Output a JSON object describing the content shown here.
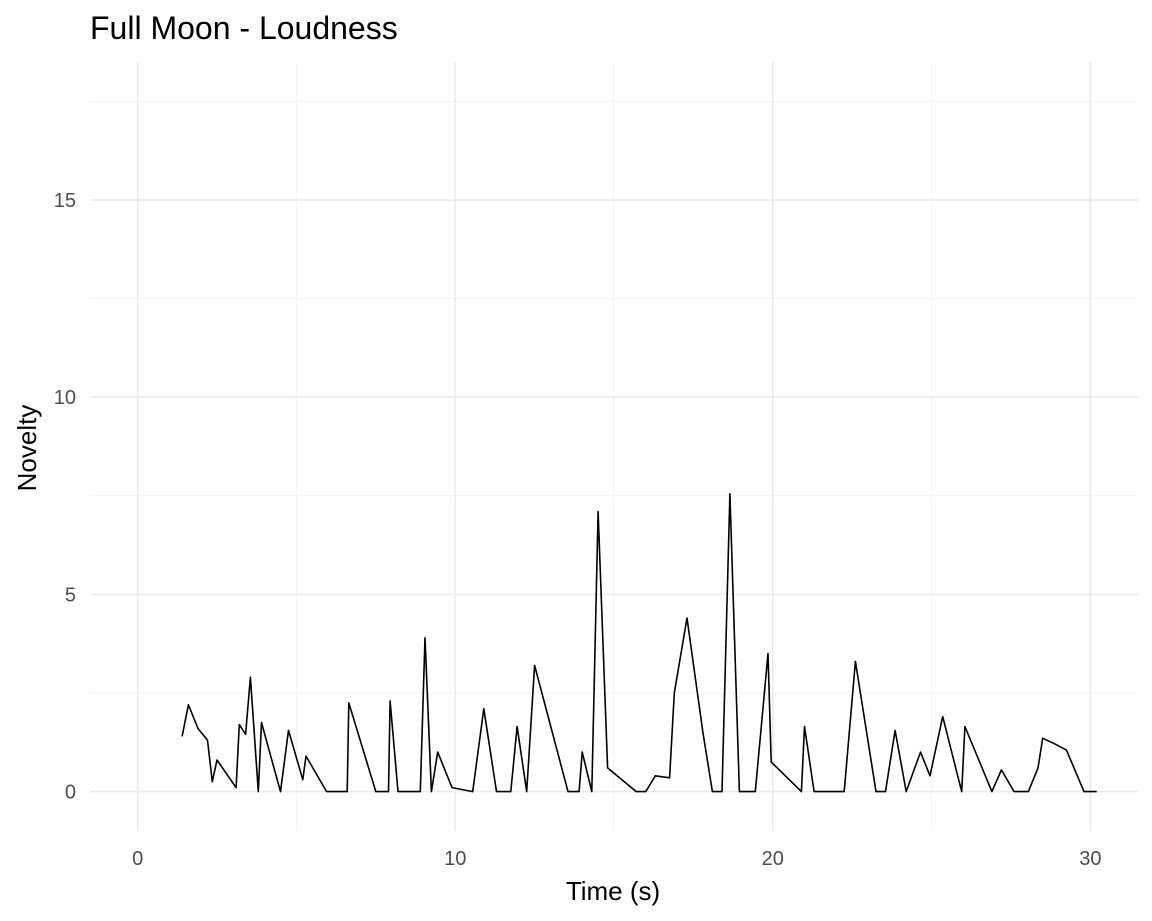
{
  "chart_data": {
    "type": "line",
    "title": "Full Moon - Loudness",
    "xlabel": "Time (s)",
    "ylabel": "Novelty",
    "xlim": [
      -1.5,
      31.5
    ],
    "ylim": [
      -1,
      18.5
    ],
    "x_ticks": [
      0,
      10,
      20,
      30
    ],
    "y_ticks": [
      0,
      5,
      10,
      15
    ],
    "x_tick_labels": [
      "0",
      "10",
      "20",
      "30"
    ],
    "y_tick_labels": [
      "0",
      "5",
      "10",
      "15"
    ],
    "grid": true,
    "series": [
      {
        "points": [
          [
            1.4,
            1.4
          ],
          [
            1.6,
            2.2
          ],
          [
            1.9,
            1.6
          ],
          [
            2.2,
            1.3
          ],
          [
            2.35,
            0.25
          ],
          [
            2.5,
            0.8
          ],
          [
            3.1,
            0.1
          ],
          [
            3.2,
            1.7
          ],
          [
            3.4,
            1.45
          ],
          [
            3.55,
            2.9
          ],
          [
            3.8,
            0.0
          ],
          [
            3.9,
            1.75
          ],
          [
            4.5,
            0.0
          ],
          [
            4.75,
            1.55
          ],
          [
            5.2,
            0.3
          ],
          [
            5.3,
            0.9
          ],
          [
            5.95,
            0.0
          ],
          [
            6.6,
            0.0
          ],
          [
            6.65,
            2.25
          ],
          [
            7.5,
            0.0
          ],
          [
            7.9,
            0.0
          ],
          [
            7.95,
            2.3
          ],
          [
            8.2,
            0.0
          ],
          [
            8.9,
            0.0
          ],
          [
            9.05,
            3.9
          ],
          [
            9.25,
            0.0
          ],
          [
            9.45,
            1.0
          ],
          [
            9.9,
            0.1
          ],
          [
            10.55,
            0.0
          ],
          [
            10.9,
            2.1
          ],
          [
            11.3,
            0.0
          ],
          [
            11.75,
            0.0
          ],
          [
            11.95,
            1.65
          ],
          [
            12.25,
            0.0
          ],
          [
            12.5,
            3.2
          ],
          [
            13.55,
            0.0
          ],
          [
            13.9,
            0.0
          ],
          [
            14.0,
            1.0
          ],
          [
            14.3,
            0.0
          ],
          [
            14.5,
            7.1
          ],
          [
            14.8,
            0.6
          ],
          [
            15.7,
            0.0
          ],
          [
            16.0,
            0.0
          ],
          [
            16.3,
            0.4
          ],
          [
            16.75,
            0.35
          ],
          [
            16.9,
            2.5
          ],
          [
            17.3,
            4.4
          ],
          [
            17.8,
            1.5
          ],
          [
            18.1,
            0.0
          ],
          [
            18.4,
            0.0
          ],
          [
            18.65,
            7.55
          ],
          [
            18.95,
            0.0
          ],
          [
            19.45,
            0.0
          ],
          [
            19.85,
            3.5
          ],
          [
            19.95,
            0.75
          ],
          [
            20.9,
            0.0
          ],
          [
            21.0,
            1.65
          ],
          [
            21.3,
            0.0
          ],
          [
            22.25,
            0.0
          ],
          [
            22.6,
            3.3
          ],
          [
            23.25,
            0.0
          ],
          [
            23.55,
            0.0
          ],
          [
            23.85,
            1.55
          ],
          [
            24.2,
            0.0
          ],
          [
            24.65,
            1.0
          ],
          [
            24.95,
            0.4
          ],
          [
            25.35,
            1.9
          ],
          [
            25.95,
            0.0
          ],
          [
            26.05,
            1.65
          ],
          [
            26.9,
            0.0
          ],
          [
            27.2,
            0.55
          ],
          [
            27.6,
            0.0
          ],
          [
            28.05,
            0.0
          ],
          [
            28.35,
            0.6
          ],
          [
            28.5,
            1.35
          ],
          [
            28.9,
            1.2
          ],
          [
            29.25,
            1.05
          ],
          [
            29.8,
            0.0
          ],
          [
            30.2,
            0.0
          ]
        ]
      }
    ]
  }
}
